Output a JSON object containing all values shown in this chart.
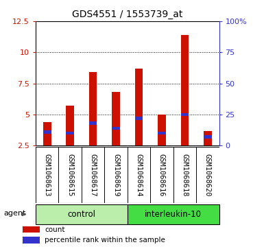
{
  "title": "GDS4551 / 1553739_at",
  "samples": [
    "GSM1068613",
    "GSM1068615",
    "GSM1068617",
    "GSM1068619",
    "GSM1068614",
    "GSM1068616",
    "GSM1068618",
    "GSM1068620"
  ],
  "count_values": [
    4.4,
    5.7,
    8.4,
    6.8,
    8.7,
    5.0,
    11.4,
    3.7
  ],
  "percentile_values": [
    3.6,
    3.5,
    4.3,
    3.9,
    4.7,
    3.5,
    5.0,
    3.2
  ],
  "bar_bottom": 2.5,
  "ylim_left": [
    2.5,
    12.5
  ],
  "ylim_right": [
    0,
    100
  ],
  "yticks_left": [
    2.5,
    5.0,
    7.5,
    10.0,
    12.5
  ],
  "ytick_labels_left": [
    "2.5",
    "5",
    "7.5",
    "10",
    "12.5"
  ],
  "yticks_right": [
    0,
    25,
    50,
    75,
    100
  ],
  "ytick_labels_right": [
    "0",
    "25",
    "50",
    "75",
    "100%"
  ],
  "bar_color": "#cc1100",
  "percentile_color": "#3333cc",
  "bar_width": 0.35,
  "blue_bar_width": 0.35,
  "blue_bar_height": 0.25,
  "groups": [
    {
      "label": "control",
      "start": 0,
      "end": 4,
      "color": "#bbeeaa"
    },
    {
      "label": "interleukin-10",
      "start": 4,
      "end": 8,
      "color": "#44dd44"
    }
  ],
  "agent_label": "agent",
  "legend_items": [
    {
      "label": "count",
      "color": "#cc1100"
    },
    {
      "label": "percentile rank within the sample",
      "color": "#3333cc"
    }
  ],
  "background_color": "#d8d8d8",
  "plot_bg": "#ffffff",
  "title_fontsize": 10,
  "tick_fontsize": 8,
  "label_fontsize": 7.5,
  "group_fontsize": 8.5
}
